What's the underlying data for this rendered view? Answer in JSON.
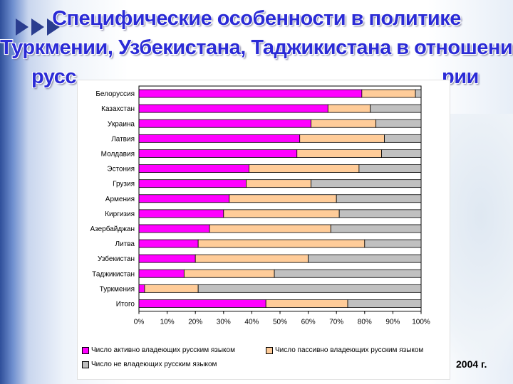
{
  "title": {
    "line1": "Специфические особенности в политике",
    "line2": "Туркмении, Узбекистана, Таджикистана в отношении",
    "line3_left": "русс",
    "line3_right": "рии"
  },
  "year_label": "2004 г.",
  "colors": {
    "active": "#ff00ff",
    "passive": "#ffcc99",
    "none": "#c0c0c0"
  },
  "chart_data": {
    "type": "bar",
    "orientation": "horizontal",
    "stacked": true,
    "percent_stacked": true,
    "categories": [
      "Белоруссия",
      "Казахстан",
      "Украина",
      "Латвия",
      "Молдавия",
      "Эстония",
      "Грузия",
      "Армения",
      "Киргизия",
      "Азербайджан",
      "Литва",
      "Узбекистан",
      "Таджикистан",
      "Туркмения",
      "Итого"
    ],
    "series": [
      {
        "name": "Число активно владеющих русским языком",
        "values": [
          79,
          67,
          61,
          57,
          56,
          39,
          38,
          32,
          30,
          25,
          21,
          20,
          16,
          2,
          45
        ]
      },
      {
        "name": "Число пассивно владеющих русским языком",
        "values": [
          19,
          15,
          23,
          30,
          30,
          39,
          23,
          38,
          41,
          43,
          59,
          40,
          32,
          19,
          29
        ]
      },
      {
        "name": "Число не владеющих русским языком",
        "values": [
          2,
          18,
          16,
          13,
          14,
          22,
          39,
          30,
          29,
          32,
          20,
          40,
          52,
          79,
          26
        ]
      }
    ],
    "x_ticks": [
      "0%",
      "10%",
      "20%",
      "30%",
      "40%",
      "50%",
      "60%",
      "70%",
      "80%",
      "90%",
      "100%"
    ],
    "xlim": [
      0,
      100
    ],
    "legend_position": "bottom"
  }
}
